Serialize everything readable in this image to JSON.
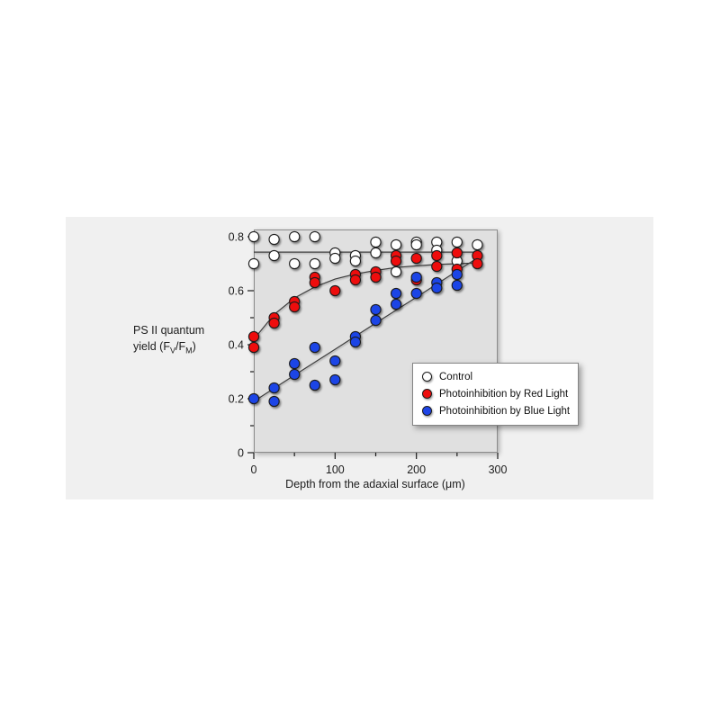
{
  "page": {
    "background": "#ffffff",
    "card_background": "#f0f0f0"
  },
  "chart_data": {
    "type": "scatter",
    "title": "",
    "xlabel": "Depth from the adaxial surface (μm)",
    "ylabel_line1": "PS II quantum",
    "ylabel_line2": {
      "pre": "yield (F",
      "sub1": "V",
      "mid": "/F",
      "sub2": "M",
      "post": ")"
    },
    "x_axis": {
      "min": 0,
      "max": 300,
      "major_ticks": [
        0,
        100,
        200,
        300
      ],
      "tick_labels": [
        "0",
        "100",
        "200",
        "300"
      ],
      "minor_ticks": [
        50,
        150,
        250
      ]
    },
    "y_axis": {
      "min": 0,
      "max": 0.827,
      "major_ticks": [
        0,
        0.2,
        0.4,
        0.6,
        0.8
      ],
      "tick_labels": [
        "0",
        "0.2",
        "0.4",
        "0.6",
        "0.8"
      ],
      "minor_ticks": [
        0.1,
        0.3,
        0.5,
        0.7
      ]
    },
    "grid": false,
    "plot_background": "#e0e0e0",
    "box_border_color": "#8c8c8c",
    "fit_line_color": "#3c3c3c",
    "legend_position": "inside-bottom-right",
    "series": [
      {
        "id": "control",
        "name": "Control",
        "marker": "open-circle",
        "fill": "#ffffff",
        "stroke": "#1a1a1a",
        "points": [
          [
            0,
            0.8
          ],
          [
            0,
            0.7
          ],
          [
            25,
            0.79
          ],
          [
            25,
            0.73
          ],
          [
            50,
            0.8
          ],
          [
            50,
            0.7
          ],
          [
            75,
            0.8
          ],
          [
            75,
            0.7
          ],
          [
            100,
            0.74
          ],
          [
            100,
            0.72
          ],
          [
            125,
            0.73
          ],
          [
            125,
            0.71
          ],
          [
            150,
            0.78
          ],
          [
            150,
            0.74
          ],
          [
            175,
            0.77
          ],
          [
            175,
            0.67
          ],
          [
            200,
            0.78
          ],
          [
            200,
            0.77
          ],
          [
            225,
            0.78
          ],
          [
            225,
            0.75
          ],
          [
            250,
            0.78
          ],
          [
            250,
            0.71
          ],
          [
            275,
            0.77
          ]
        ],
        "fit": {
          "type": "constant",
          "points": [
            [
              0,
              0.743
            ],
            [
              277,
              0.743
            ]
          ]
        }
      },
      {
        "id": "red",
        "name": "Photoinhibition by Red Light",
        "marker": "filled-circle",
        "fill": "#ee0e0e",
        "stroke": "#1a1a1a",
        "points": [
          [
            0,
            0.43
          ],
          [
            0,
            0.39
          ],
          [
            25,
            0.5
          ],
          [
            25,
            0.48
          ],
          [
            50,
            0.56
          ],
          [
            50,
            0.54
          ],
          [
            75,
            0.65
          ],
          [
            75,
            0.63
          ],
          [
            100,
            0.6
          ],
          [
            125,
            0.66
          ],
          [
            125,
            0.64
          ],
          [
            150,
            0.67
          ],
          [
            150,
            0.65
          ],
          [
            175,
            0.73
          ],
          [
            175,
            0.71
          ],
          [
            200,
            0.72
          ],
          [
            200,
            0.64
          ],
          [
            225,
            0.73
          ],
          [
            225,
            0.69
          ],
          [
            250,
            0.74
          ],
          [
            250,
            0.68
          ],
          [
            275,
            0.73
          ],
          [
            275,
            0.7
          ]
        ],
        "fit": {
          "type": "saturating-exponential",
          "points": [
            [
              0,
              0.42
            ],
            [
              25,
              0.512
            ],
            [
              50,
              0.573
            ],
            [
              75,
              0.614
            ],
            [
              100,
              0.643
            ],
            [
              125,
              0.662
            ],
            [
              150,
              0.675
            ],
            [
              175,
              0.686
            ],
            [
              200,
              0.692
            ],
            [
              225,
              0.697
            ],
            [
              250,
              0.7
            ],
            [
              277,
              0.703
            ]
          ]
        }
      },
      {
        "id": "blue",
        "name": "Photoinhibition by Blue Light",
        "marker": "filled-circle",
        "fill": "#1e44e6",
        "stroke": "#1a1a1a",
        "points": [
          [
            0,
            0.2
          ],
          [
            25,
            0.24
          ],
          [
            25,
            0.19
          ],
          [
            50,
            0.33
          ],
          [
            50,
            0.29
          ],
          [
            75,
            0.39
          ],
          [
            75,
            0.25
          ],
          [
            100,
            0.34
          ],
          [
            100,
            0.27
          ],
          [
            125,
            0.43
          ],
          [
            125,
            0.41
          ],
          [
            150,
            0.53
          ],
          [
            150,
            0.49
          ],
          [
            175,
            0.59
          ],
          [
            175,
            0.55
          ],
          [
            200,
            0.65
          ],
          [
            200,
            0.59
          ],
          [
            225,
            0.63
          ],
          [
            225,
            0.61
          ],
          [
            250,
            0.66
          ],
          [
            250,
            0.62
          ]
        ],
        "fit": {
          "type": "linear",
          "points": [
            [
              0,
              0.19
            ],
            [
              50,
              0.287
            ],
            [
              100,
              0.383
            ],
            [
              150,
              0.48
            ],
            [
              200,
              0.576
            ],
            [
              250,
              0.673
            ],
            [
              277,
              0.725
            ]
          ]
        }
      }
    ]
  }
}
